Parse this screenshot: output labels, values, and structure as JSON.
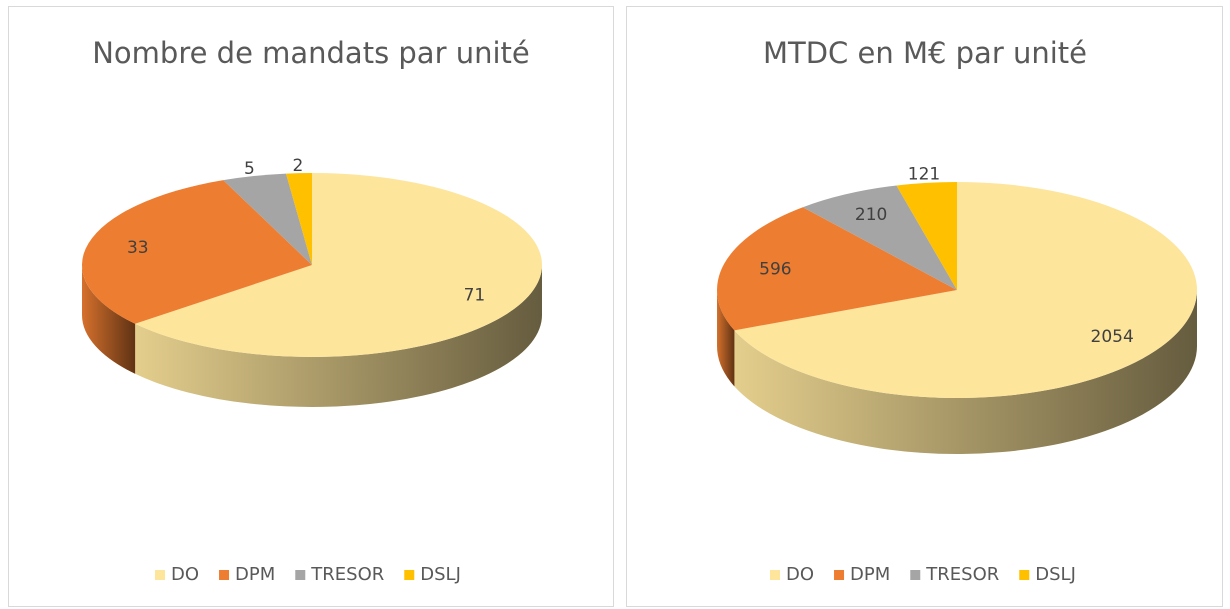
{
  "chart_data": [
    {
      "type": "pie",
      "title": "Nombre de mandats par unité",
      "categories": [
        "DO",
        "DPM",
        "TRESOR",
        "DSLJ"
      ],
      "values": [
        71,
        33,
        5,
        2
      ],
      "colors": [
        "#fde59c",
        "#ed7d31",
        "#a5a5a5",
        "#ffc000"
      ],
      "legend": "bottom"
    },
    {
      "type": "pie",
      "title": "MTDC en M€  par unité",
      "categories": [
        "DO",
        "DPM",
        "TRESOR",
        "DSLJ"
      ],
      "values": [
        2054,
        596,
        210,
        121
      ],
      "colors": [
        "#fde59c",
        "#ed7d31",
        "#a5a5a5",
        "#ffc000"
      ],
      "legend": "bottom"
    }
  ]
}
